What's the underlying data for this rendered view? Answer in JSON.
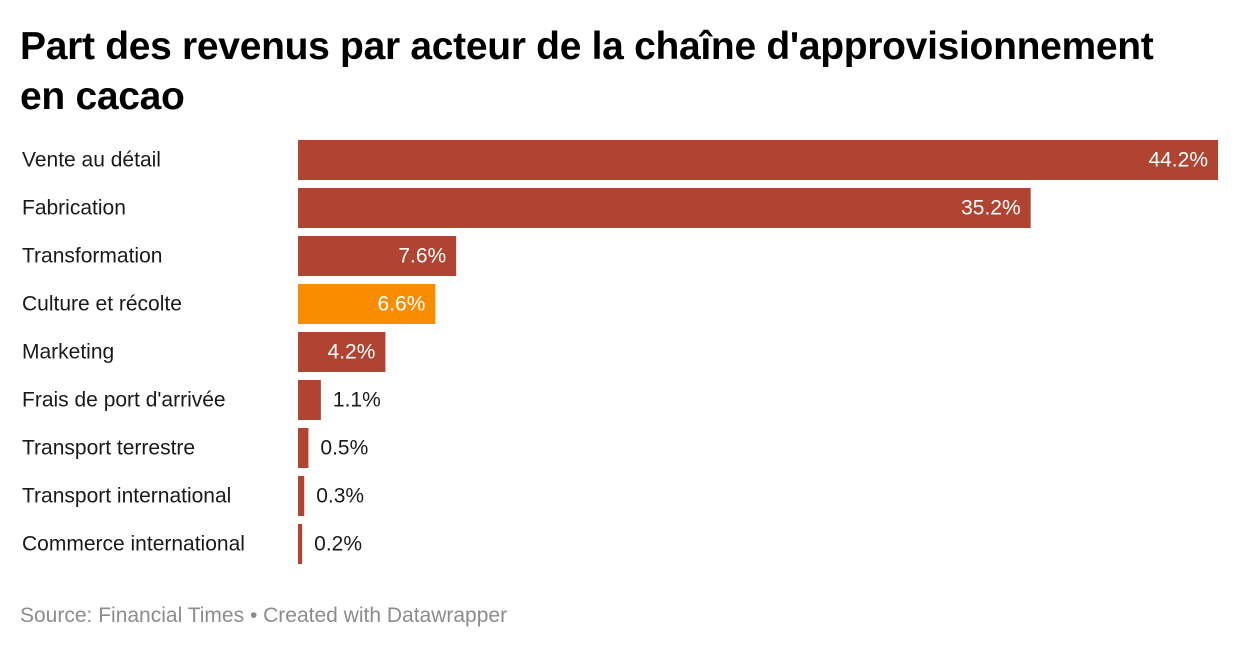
{
  "title": "Part des revenus par acteur de la chaîne d'approvisionnement en cacao",
  "footer": {
    "source": "Source: Financial Times",
    "separator": "•",
    "credit": "Created with Datawrapper"
  },
  "colors": {
    "bar_default": "#b04431",
    "bar_highlight": "#fa8c00",
    "label_inside": "#ffffff",
    "label_outside": "#1a1a1a",
    "category_text": "#1a1a1a",
    "footer_text": "#8c8c8c"
  },
  "chart_data": {
    "type": "bar",
    "orientation": "horizontal",
    "title": "Part des revenus par acteur de la chaîne d'approvisionnement en cacao",
    "xlabel": "",
    "ylabel": "",
    "unit": "%",
    "xlim": [
      0,
      44.2
    ],
    "grid": false,
    "legend": "none",
    "categories": [
      "Vente au détail",
      "Fabrication",
      "Transformation",
      "Culture et récolte",
      "Marketing",
      "Frais de port d'arrivée",
      "Transport terrestre",
      "Transport international",
      "Commerce international"
    ],
    "values": [
      44.2,
      35.2,
      7.6,
      6.6,
      4.2,
      1.1,
      0.5,
      0.3,
      0.2
    ],
    "value_labels": [
      "44.2%",
      "35.2%",
      "7.6%",
      "6.6%",
      "4.2%",
      "1.1%",
      "0.5%",
      "0.3%",
      "0.2%"
    ],
    "highlighted_category": "Culture et récolte"
  }
}
